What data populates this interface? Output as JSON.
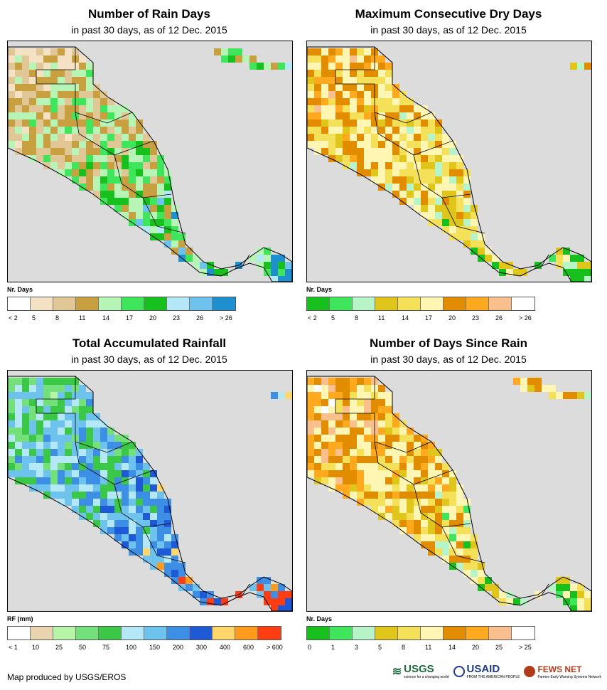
{
  "panels": [
    {
      "title": "Number of Rain Days",
      "subtitle": "in past 30 days, as of 12 Dec. 2015",
      "legend_title": "Nr. Days",
      "legend_colors": [
        "#ffffff",
        "#f5e1c3",
        "#e2c796",
        "#c9a040",
        "#b7f5b7",
        "#3fe55a",
        "#18c01d",
        "#b4e8f7",
        "#6ec3ee",
        "#1e90d0"
      ],
      "legend_labels": [
        "< 2",
        "5",
        "8",
        "11",
        "14",
        "17",
        "20",
        "23",
        "26",
        "> 26"
      ],
      "palette_weights": [
        0.07,
        0.13,
        0.17,
        0.2,
        0.13,
        0.13,
        0.1,
        0.03,
        0.02,
        0.02
      ],
      "icon": "rain-days-map"
    },
    {
      "title": "Maximum Consecutive Dry Days",
      "subtitle": "in past 30 days, as of 12 Dec. 2015",
      "legend_title": "Nr. Days",
      "legend_colors": [
        "#18c01d",
        "#3fe55a",
        "#b7f5c8",
        "#e0c61a",
        "#f5e05a",
        "#fff6b4",
        "#e28c00",
        "#ffaa1e",
        "#f9c08e",
        "#ffffff"
      ],
      "legend_labels": [
        "< 2",
        "5",
        "8",
        "11",
        "14",
        "17",
        "20",
        "23",
        "26",
        "> 26"
      ],
      "palette_weights": [
        0.04,
        0.08,
        0.12,
        0.2,
        0.2,
        0.12,
        0.12,
        0.08,
        0.03,
        0.01
      ],
      "icon": "dry-days-map"
    },
    {
      "title": "Total Accumulated Rainfall",
      "subtitle": "in past 30 days, as of 12 Dec. 2015",
      "legend_title": "RF (mm)",
      "legend_colors": [
        "#ffffff",
        "#ead4b0",
        "#b5f5a5",
        "#73e07a",
        "#3ac846",
        "#b4e8f7",
        "#6ec3ee",
        "#3d8fe6",
        "#1e5ad8",
        "#ffd66a",
        "#ff9a1a",
        "#ff3d12"
      ],
      "legend_labels": [
        "< 1",
        "10",
        "25",
        "50",
        "75",
        "100",
        "150",
        "200",
        "300",
        "400",
        "600",
        "> 600"
      ],
      "palette_weights": [
        0.0,
        0.02,
        0.08,
        0.17,
        0.12,
        0.13,
        0.15,
        0.15,
        0.1,
        0.04,
        0.03,
        0.01
      ],
      "icon": "rainfall-map"
    },
    {
      "title": "Number of Days Since Rain",
      "subtitle": "in past 30 days, as of 12 Dec. 2015",
      "legend_title": "Nr. Days",
      "legend_colors": [
        "#18c01d",
        "#3fe55a",
        "#b7f5c8",
        "#e0c61a",
        "#f5e05a",
        "#fff6b4",
        "#e28c00",
        "#ffaa1e",
        "#f9c08e",
        "#ffffff"
      ],
      "legend_labels": [
        "0",
        "1",
        "3",
        "5",
        "8",
        "11",
        "14",
        "20",
        "25",
        "> 25"
      ],
      "palette_weights": [
        0.1,
        0.12,
        0.15,
        0.17,
        0.16,
        0.1,
        0.08,
        0.08,
        0.04,
        0.0
      ],
      "icon": "days-since-rain-map"
    }
  ],
  "footer": "Map produced by USGS/EROS",
  "logos": [
    {
      "name": "usgs-logo",
      "text": "USGS",
      "tagline": "science for a changing world",
      "color": "#1d6b3c"
    },
    {
      "name": "usaid-logo",
      "text": "USAID",
      "tagline": "FROM THE AMERICAN PEOPLE",
      "color": "#1f3a8a"
    },
    {
      "name": "fewsnet-logo",
      "text": "FEWS NET",
      "tagline": "Famine Early Warning Systems Network",
      "color": "#b03a1a"
    }
  ],
  "colors": {
    "ocean": "#dcdcdc",
    "border": "#000000"
  }
}
